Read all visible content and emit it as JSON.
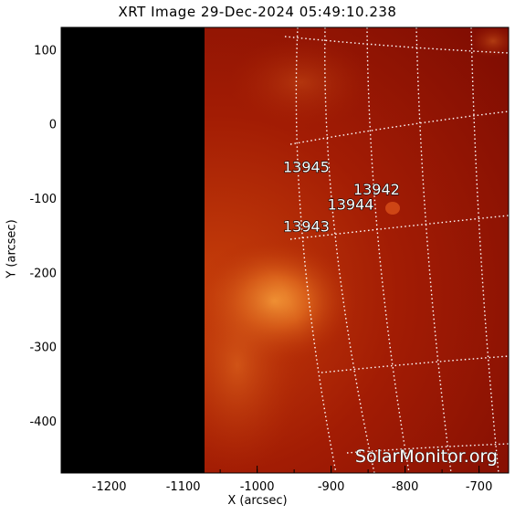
{
  "title": "XRT Image 29-Dec-2024 05:49:10.238",
  "x_axis": {
    "label": "X (arcsec)",
    "range": [
      -1265,
      -660
    ],
    "ticks": [
      -1200,
      -1100,
      -1000,
      -900,
      -800,
      -700
    ]
  },
  "y_axis": {
    "label": "Y (arcsec)",
    "range": [
      -470,
      130
    ],
    "ticks": [
      100,
      0,
      -100,
      -200,
      -300,
      -400
    ]
  },
  "active_regions": [
    {
      "label": "13945",
      "x": -965,
      "y": -65
    },
    {
      "label": "13942",
      "x": -870,
      "y": -95
    },
    {
      "label": "13944",
      "x": -905,
      "y": -115
    },
    {
      "label": "13943",
      "x": -965,
      "y": -145
    }
  ],
  "watermark": "SolarMonitor.org",
  "colors": {
    "background": "#ffffff",
    "sky": "#000000",
    "disk_dark": "#8a0e02",
    "disk_mid": "#b42a05",
    "bright": "#f08a2a",
    "grid": "#ffffff"
  }
}
